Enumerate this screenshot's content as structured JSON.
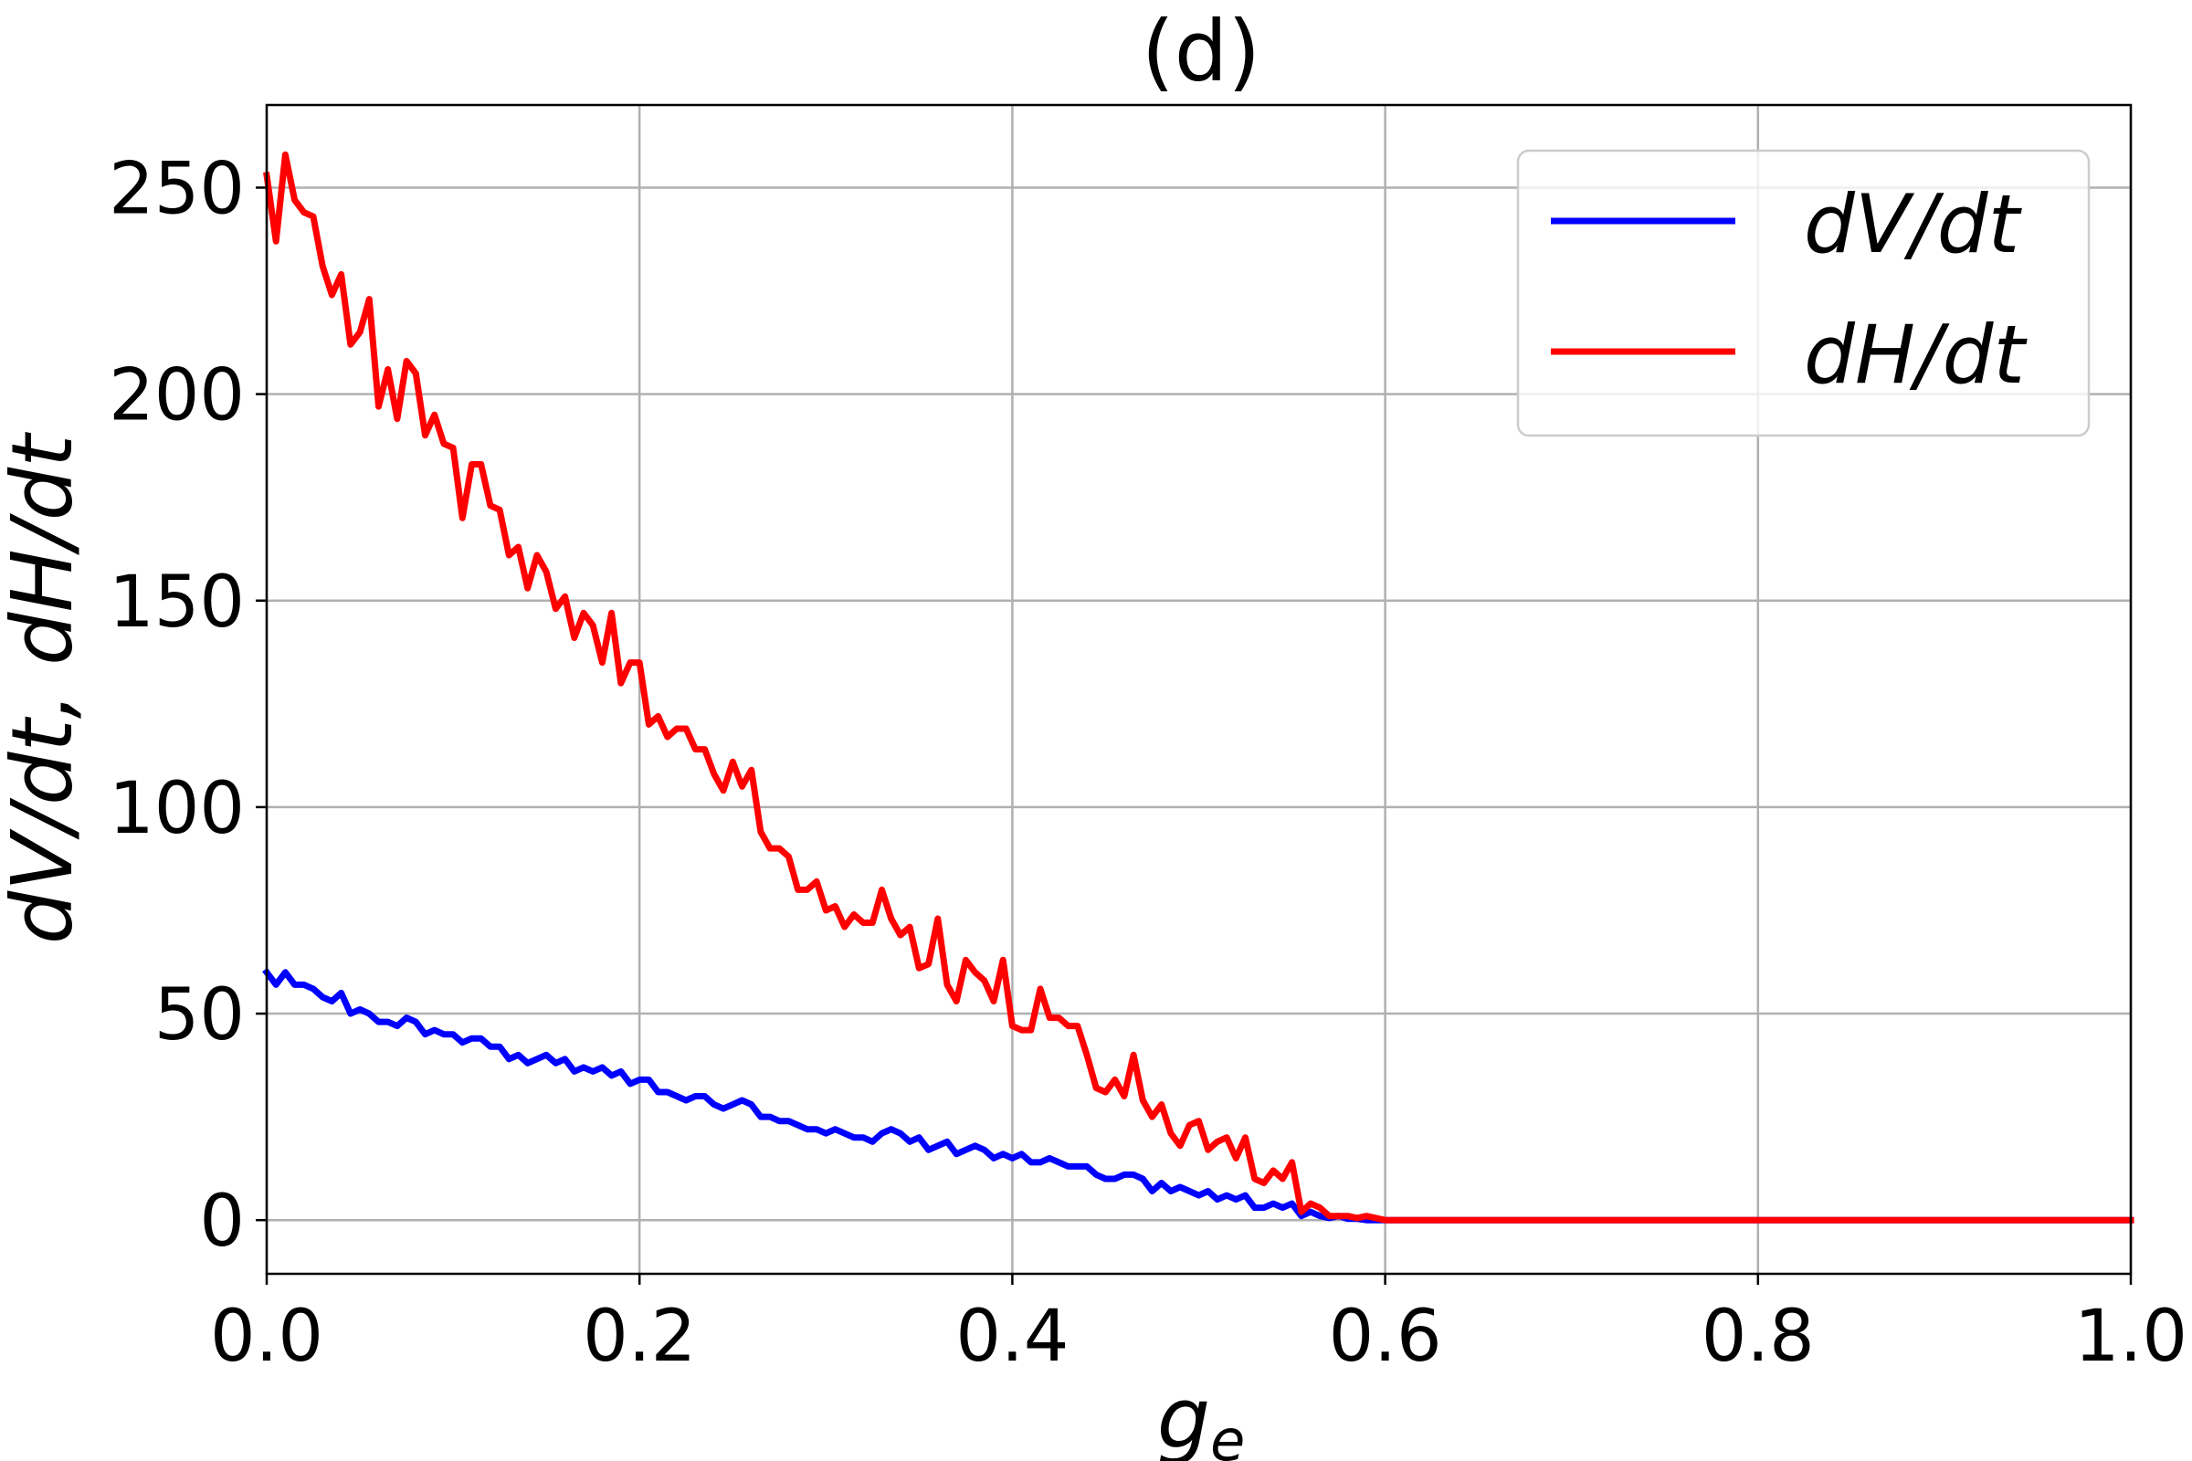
{
  "chart_data": {
    "type": "line",
    "title": "(d)",
    "xlabel": "g",
    "xlabel_subscript": "e",
    "ylabel": "dV/dt, dH/dt",
    "xlim": [
      0.0,
      1.0
    ],
    "ylim": [
      -13,
      270
    ],
    "xticks": [
      0.0,
      0.2,
      0.4,
      0.6,
      0.8,
      1.0
    ],
    "xtick_labels": [
      "0.0",
      "0.2",
      "0.4",
      "0.6",
      "0.8",
      "1.0"
    ],
    "yticks": [
      0,
      50,
      100,
      150,
      200,
      250
    ],
    "ytick_labels": [
      "0",
      "50",
      "100",
      "150",
      "200",
      "250"
    ],
    "grid": true,
    "legend_position": "top-right",
    "series": [
      {
        "name": "dV/dt",
        "color": "#0000ff",
        "x": [
          0.0,
          0.005,
          0.01,
          0.015,
          0.02,
          0.025,
          0.03,
          0.035,
          0.04,
          0.045,
          0.05,
          0.055,
          0.06,
          0.065,
          0.07,
          0.075,
          0.08,
          0.085,
          0.09,
          0.095,
          0.1,
          0.105,
          0.11,
          0.115,
          0.12,
          0.125,
          0.13,
          0.135,
          0.14,
          0.145,
          0.15,
          0.155,
          0.16,
          0.165,
          0.17,
          0.175,
          0.18,
          0.185,
          0.19,
          0.195,
          0.2,
          0.205,
          0.21,
          0.215,
          0.22,
          0.225,
          0.23,
          0.235,
          0.24,
          0.245,
          0.25,
          0.255,
          0.26,
          0.265,
          0.27,
          0.275,
          0.28,
          0.285,
          0.29,
          0.295,
          0.3,
          0.305,
          0.31,
          0.315,
          0.32,
          0.325,
          0.33,
          0.335,
          0.34,
          0.345,
          0.35,
          0.355,
          0.36,
          0.365,
          0.37,
          0.375,
          0.38,
          0.385,
          0.39,
          0.395,
          0.4,
          0.405,
          0.41,
          0.415,
          0.42,
          0.425,
          0.43,
          0.435,
          0.44,
          0.445,
          0.45,
          0.455,
          0.46,
          0.465,
          0.47,
          0.475,
          0.48,
          0.485,
          0.49,
          0.495,
          0.5,
          0.505,
          0.51,
          0.515,
          0.52,
          0.525,
          0.53,
          0.535,
          0.54,
          0.545,
          0.55,
          0.555,
          0.56,
          0.565,
          0.57,
          0.575,
          0.58,
          0.585,
          0.59,
          0.6,
          0.65,
          0.7,
          0.75,
          0.8,
          0.85,
          0.9,
          0.95,
          1.0
        ],
        "y": [
          60,
          57,
          60,
          57,
          57,
          56,
          54,
          53,
          55,
          50,
          51,
          50,
          48,
          48,
          47,
          49,
          48,
          45,
          46,
          45,
          45,
          43,
          44,
          44,
          42,
          42,
          39,
          40,
          38,
          39,
          40,
          38,
          39,
          36,
          37,
          36,
          37,
          35,
          36,
          33,
          34,
          34,
          31,
          31,
          30,
          29,
          30,
          30,
          28,
          27,
          28,
          29,
          28,
          25,
          25,
          24,
          24,
          23,
          22,
          22,
          21,
          22,
          21,
          20,
          20,
          19,
          21,
          22,
          21,
          19,
          20,
          17,
          18,
          19,
          16,
          17,
          18,
          17,
          15,
          16,
          15,
          16,
          14,
          14,
          15,
          14,
          13,
          13,
          13,
          11,
          10,
          10,
          11,
          11,
          10,
          7,
          9,
          7,
          8,
          7,
          6,
          7,
          5,
          6,
          5,
          6,
          3,
          3,
          4,
          3,
          4,
          1,
          2,
          1,
          0.5,
          1,
          0.3,
          0.3,
          0,
          0,
          0,
          0,
          0,
          0,
          0,
          0,
          0,
          0
        ]
      },
      {
        "name": "dH/dt",
        "color": "#ff0000",
        "x": [
          0.0,
          0.005,
          0.01,
          0.015,
          0.02,
          0.025,
          0.03,
          0.035,
          0.04,
          0.045,
          0.05,
          0.055,
          0.06,
          0.065,
          0.07,
          0.075,
          0.08,
          0.085,
          0.09,
          0.095,
          0.1,
          0.105,
          0.11,
          0.115,
          0.12,
          0.125,
          0.13,
          0.135,
          0.14,
          0.145,
          0.15,
          0.155,
          0.16,
          0.165,
          0.17,
          0.175,
          0.18,
          0.185,
          0.19,
          0.195,
          0.2,
          0.205,
          0.21,
          0.215,
          0.22,
          0.225,
          0.23,
          0.235,
          0.24,
          0.245,
          0.25,
          0.255,
          0.26,
          0.265,
          0.27,
          0.275,
          0.28,
          0.285,
          0.29,
          0.295,
          0.3,
          0.305,
          0.31,
          0.315,
          0.32,
          0.325,
          0.33,
          0.335,
          0.34,
          0.345,
          0.35,
          0.355,
          0.36,
          0.365,
          0.37,
          0.375,
          0.38,
          0.385,
          0.39,
          0.395,
          0.4,
          0.405,
          0.41,
          0.415,
          0.42,
          0.425,
          0.43,
          0.435,
          0.44,
          0.445,
          0.45,
          0.455,
          0.46,
          0.465,
          0.47,
          0.475,
          0.48,
          0.485,
          0.49,
          0.495,
          0.5,
          0.505,
          0.51,
          0.515,
          0.52,
          0.525,
          0.53,
          0.535,
          0.54,
          0.545,
          0.55,
          0.555,
          0.56,
          0.565,
          0.57,
          0.575,
          0.58,
          0.585,
          0.59,
          0.6,
          0.65,
          0.7,
          0.75,
          0.8,
          0.85,
          0.9,
          0.95,
          1.0
        ],
        "y": [
          253,
          237,
          258,
          247,
          244,
          243,
          231,
          224,
          229,
          212,
          215,
          223,
          197,
          206,
          194,
          208,
          205,
          190,
          195,
          188,
          187,
          170,
          183,
          183,
          173,
          172,
          161,
          163,
          153,
          161,
          157,
          148,
          151,
          141,
          147,
          144,
          135,
          147,
          130,
          135,
          135,
          120,
          122,
          117,
          119,
          119,
          114,
          114,
          108,
          104,
          111,
          105,
          109,
          94,
          90,
          90,
          88,
          80,
          80,
          82,
          75,
          76,
          71,
          74,
          72,
          72,
          80,
          73,
          69,
          71,
          61,
          62,
          73,
          57,
          53,
          63,
          60,
          58,
          53,
          63,
          47,
          46,
          46,
          56,
          49,
          49,
          47,
          47,
          40,
          32,
          31,
          34,
          30,
          40,
          29,
          25,
          28,
          21,
          18,
          23,
          24,
          17,
          19,
          20,
          15,
          20,
          10,
          9,
          12,
          10,
          14,
          2,
          4,
          3,
          1,
          1,
          1,
          0.5,
          1,
          0,
          0,
          0,
          0,
          0,
          0,
          0,
          0,
          0
        ]
      }
    ]
  }
}
